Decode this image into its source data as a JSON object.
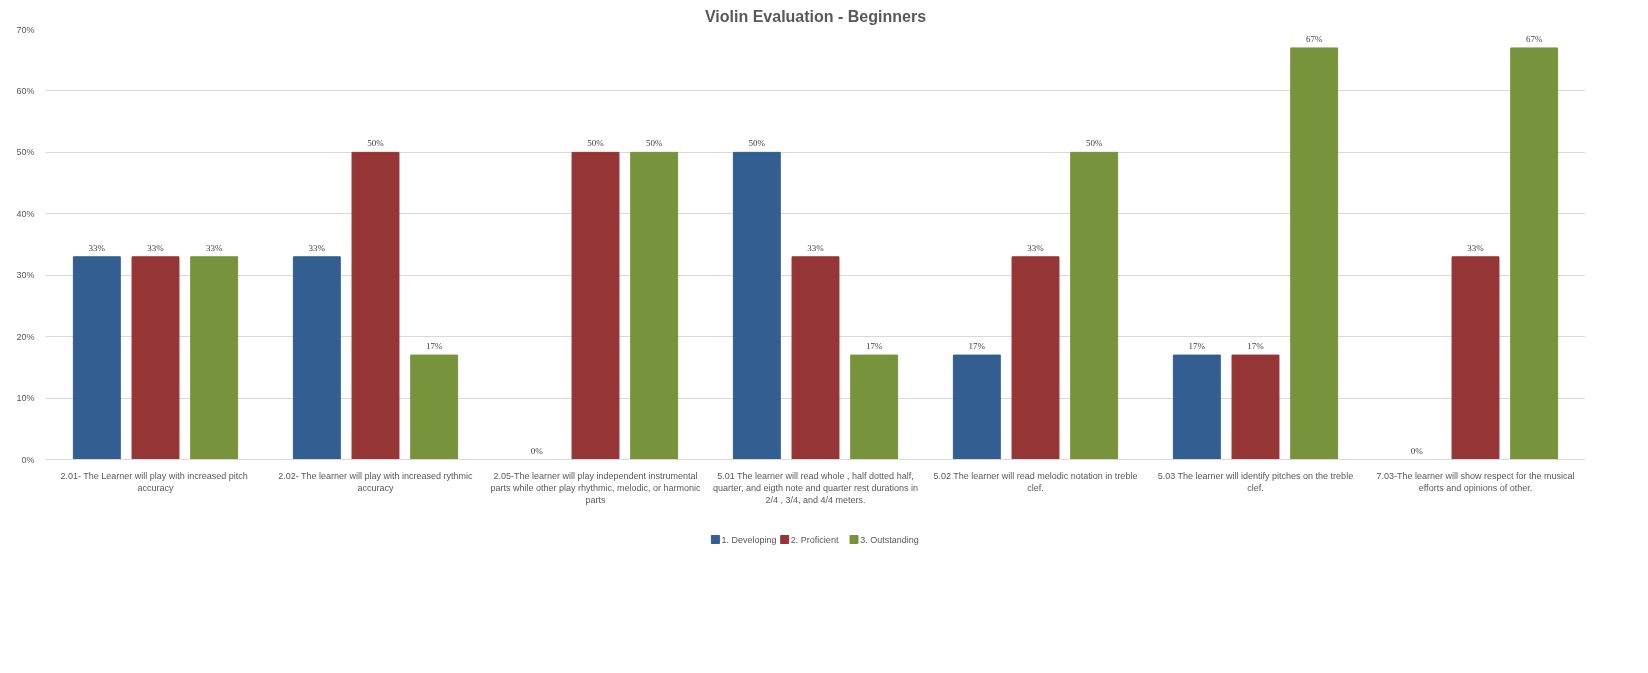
{
  "chart_data": {
    "type": "bar",
    "title": "Violin Evaluation - Beginners",
    "categories": [
      "2.01-  The Learner will play with increased pitch accuracy",
      "2.02- The learner will play with increased rythmic accuracy",
      "2.05-The learner will play independent instrumental parts while other play rhythmic, melodic, or harmonic parts",
      "5.01 The learner will read whole , half dotted half, quarter, and eigth note and quarter rest durations in 2/4 , 3/4, and 4/4 meters.",
      "5.02 The learner will read melodic notation in treble clef.",
      "5.03 The learner will identify pitches on the treble clef.",
      "7.03-The learner will show respect for the musical efforts and opinions of other."
    ],
    "series": [
      {
        "name": "1. Developing",
        "color": "#335e91",
        "values": [
          33,
          33,
          0,
          50,
          17,
          17,
          0
        ],
        "value_labels": [
          "33%",
          "33%",
          "0%",
          "50%",
          "17%",
          "17%",
          "0%"
        ]
      },
      {
        "name": "2. Proficient",
        "color": "#963535",
        "values": [
          33,
          50,
          50,
          33,
          33,
          17,
          33
        ],
        "value_labels": [
          "33%",
          "50%",
          "50%",
          "33%",
          "33%",
          "17%",
          "33%"
        ]
      },
      {
        "name": "3. Outstanding",
        "color": "#77933c",
        "values": [
          33,
          17,
          50,
          17,
          50,
          67,
          67
        ],
        "value_labels": [
          "33%",
          "17%",
          "50%",
          "17%",
          "50%",
          "67%",
          "67%"
        ]
      }
    ],
    "ylim": [
      0,
      70
    ],
    "yticks": [
      {
        "value": 0,
        "label": "0%"
      },
      {
        "value": 10,
        "label": "10%"
      },
      {
        "value": 20,
        "label": "20%"
      },
      {
        "value": 30,
        "label": "30%"
      },
      {
        "value": 40,
        "label": "40%"
      },
      {
        "value": 50,
        "label": "50%"
      },
      {
        "value": 60,
        "label": "60%"
      },
      {
        "value": 70,
        "label": "70%"
      }
    ],
    "grid": "y",
    "legend": "bottom"
  }
}
